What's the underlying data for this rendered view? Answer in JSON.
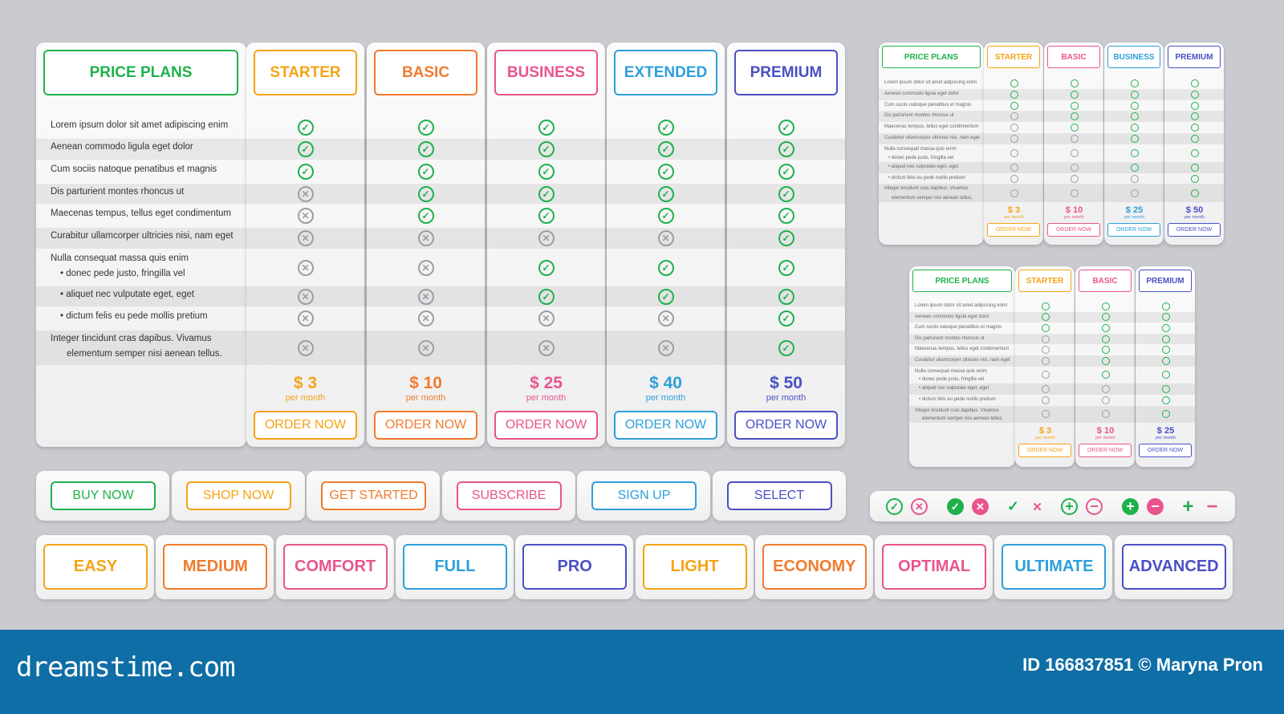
{
  "colors": {
    "green": "#1fb14c",
    "orange": "#f5a316",
    "red_orange": "#f07b2f",
    "pink": "#e9548e",
    "blue": "#2e9fd9",
    "indigo": "#4a50c4",
    "footer": "#0f6ea6",
    "gray": "#9b9ea4"
  },
  "main_table": {
    "header": "PRICE PLANS",
    "plans": [
      {
        "name": "STARTER",
        "price": "$ 3",
        "per": "per month",
        "order": "ORDER NOW",
        "color": "#f5a316"
      },
      {
        "name": "BASIC",
        "price": "$ 10",
        "per": "per month",
        "order": "ORDER NOW",
        "color": "#f07b2f"
      },
      {
        "name": "BUSINESS",
        "price": "$ 25",
        "per": "per month",
        "order": "ORDER NOW",
        "color": "#e9548e"
      },
      {
        "name": "EXTENDED",
        "price": "$ 40",
        "per": "per month",
        "order": "ORDER NOW",
        "color": "#2e9fd9"
      },
      {
        "name": "PREMIUM",
        "price": "$ 50",
        "per": "per month",
        "order": "ORDER NOW",
        "color": "#4a50c4"
      }
    ],
    "features": [
      {
        "lines": [
          "Lorem ipsum dolor sit amet adipiscing enim"
        ],
        "values": [
          1,
          1,
          1,
          1,
          1
        ]
      },
      {
        "lines": [
          "Aenean commodo ligula eget dolor"
        ],
        "values": [
          1,
          1,
          1,
          1,
          1
        ]
      },
      {
        "lines": [
          "Cum sociis natoque penatibus et magnis"
        ],
        "values": [
          1,
          1,
          1,
          1,
          1
        ]
      },
      {
        "lines": [
          "Dis parturient montes rhoncus ut"
        ],
        "values": [
          0,
          1,
          1,
          1,
          1
        ]
      },
      {
        "lines": [
          "Maecenas tempus, tellus eget condimentum"
        ],
        "values": [
          0,
          1,
          1,
          1,
          1
        ]
      },
      {
        "lines": [
          "Curabitur ullamcorper ultricies nisi, nam eget"
        ],
        "values": [
          0,
          0,
          0,
          0,
          1
        ]
      },
      {
        "lines": [
          "Nulla consequat massa quis enim",
          "• donec pede justo, fringilla vel"
        ],
        "values": [
          0,
          0,
          1,
          1,
          1
        ]
      },
      {
        "lines": [
          "• aliquet nec vulputate eget, eget"
        ],
        "values": [
          0,
          0,
          1,
          1,
          1
        ]
      },
      {
        "lines": [
          "• dictum felis eu pede mollis pretium"
        ],
        "values": [
          0,
          0,
          0,
          0,
          1
        ]
      },
      {
        "lines": [
          "Integer tincidunt cras dapibus. Vivamus",
          "elementum semper nisi aenean tellus."
        ],
        "values": [
          0,
          0,
          0,
          0,
          1
        ]
      }
    ]
  },
  "small_table_1": {
    "header": "PRICE PLANS",
    "plans": [
      {
        "name": "STARTER",
        "price": "$ 3",
        "per": "per month",
        "order": "ORDER NOW",
        "color": "#f5a316"
      },
      {
        "name": "BASIC",
        "price": "$ 10",
        "per": "per month",
        "order": "ORDER NOW",
        "color": "#e9548e"
      },
      {
        "name": "BUSINESS",
        "price": "$ 25",
        "per": "per month",
        "order": "ORDER NOW",
        "color": "#2e9fd9"
      },
      {
        "name": "PREMIUM",
        "price": "$ 50",
        "per": "per month",
        "order": "ORDER NOW",
        "color": "#4a50c4"
      }
    ]
  },
  "small_table_2": {
    "header": "PRICE PLANS",
    "plans": [
      {
        "name": "STARTER",
        "price": "$ 3",
        "per": "per month",
        "order": "ORDER NOW",
        "color": "#f5a316"
      },
      {
        "name": "BASIC",
        "price": "$ 10",
        "per": "per month",
        "order": "ORDER NOW",
        "color": "#e9548e"
      },
      {
        "name": "PREMIUM",
        "price": "$ 25",
        "per": "per month",
        "order": "ORDER NOW",
        "color": "#4a50c4"
      }
    ]
  },
  "action_buttons": [
    {
      "label": "BUY NOW",
      "color": "#1fb14c"
    },
    {
      "label": "SHOP NOW",
      "color": "#f5a316"
    },
    {
      "label": "GET STARTED",
      "color": "#f07b2f"
    },
    {
      "label": "SUBSCRIBE",
      "color": "#e9548e"
    },
    {
      "label": "SIGN UP",
      "color": "#2e9fd9"
    },
    {
      "label": "SELECT",
      "color": "#4a50c4"
    }
  ],
  "level_buttons": [
    {
      "label": "EASY",
      "color": "#f5a316"
    },
    {
      "label": "MEDIUM",
      "color": "#f07b2f"
    },
    {
      "label": "COMFORT",
      "color": "#e9548e"
    },
    {
      "label": "FULL",
      "color": "#2e9fd9"
    },
    {
      "label": "PRO",
      "color": "#4a50c4"
    },
    {
      "label": "LIGHT",
      "color": "#f5a316"
    },
    {
      "label": "ECONOMY",
      "color": "#f07b2f"
    },
    {
      "label": "OPTIMAL",
      "color": "#e9548e"
    },
    {
      "label": "ULTIMATE",
      "color": "#2e9fd9"
    },
    {
      "label": "ADVANCED",
      "color": "#4a50c4"
    }
  ],
  "icon_set": [
    "check-circle-icon",
    "cross-circle-icon",
    "check-filled-icon",
    "cross-filled-icon",
    "check-icon",
    "cross-icon",
    "plus-circle-icon",
    "minus-circle-icon",
    "plus-filled-icon",
    "minus-filled-icon",
    "plus-icon",
    "minus-icon"
  ],
  "footer": {
    "logo": "dreamstime.com",
    "credit": "ID 166837851 © Maryna Pron"
  }
}
